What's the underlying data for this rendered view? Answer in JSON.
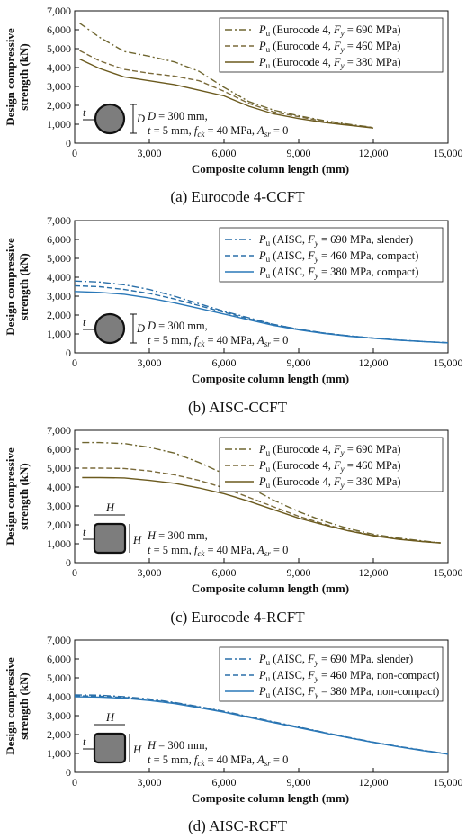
{
  "chart_data": [
    {
      "id": "a",
      "type": "line",
      "caption": "(a) Eurocode 4-CCFT",
      "xlabel": "Composite column length (mm)",
      "ylabel": [
        "Design compressive",
        "strength (kN)"
      ],
      "xlim": [
        0,
        15000
      ],
      "ylim": [
        0,
        7000
      ],
      "xticks": [
        0,
        3000,
        6000,
        9000,
        12000,
        15000
      ],
      "xtick_labels": [
        "0",
        "3,000",
        "6,000",
        "9,000",
        "12,000",
        "15,000"
      ],
      "yticks": [
        0,
        1000,
        2000,
        3000,
        4000,
        5000,
        6000,
        7000
      ],
      "ytick_labels": [
        "0",
        "1,000",
        "2,000",
        "3,000",
        "4,000",
        "5,000",
        "6,000",
        "7,000"
      ],
      "grid": false,
      "legend_position": "top-right",
      "section_shape": "circle",
      "annotation": {
        "dim_symbol": "D",
        "thickness_symbol": "t",
        "line1": "D = 300 mm,",
        "line2": "t = 5 mm, f",
        "line2_sub": "ck",
        "line2_rest": " = 40 MPa, A",
        "line2_sub2": "sr",
        "line2_end": " = 0"
      },
      "series": [
        {
          "name": "Pu (Eurocode 4, Fy = 690 MPa)",
          "label_main": "P",
          "label_sub": "u",
          "label_pre": " (Eurocode 4, ",
          "label_fy": "F",
          "label_fy_sub": "y",
          "label_post": " = 690 MPa)",
          "color": "#6f6630",
          "style": "dashdot",
          "x": [
            200,
            1000,
            2000,
            3000,
            4000,
            5000,
            6000,
            7000,
            8000,
            9000,
            10000,
            11000,
            12000
          ],
          "y": [
            6350,
            5600,
            4850,
            4600,
            4300,
            3800,
            2950,
            2200,
            1750,
            1450,
            1200,
            1000,
            830
          ]
        },
        {
          "name": "Pu (Eurocode 4, Fy = 460 MPa)",
          "label_main": "P",
          "label_sub": "u",
          "label_pre": " (Eurocode 4, ",
          "label_fy": "F",
          "label_fy_sub": "y",
          "label_post": " = 460 MPa)",
          "color": "#7a6a3a",
          "style": "dashed",
          "x": [
            200,
            1000,
            2000,
            3000,
            4000,
            5000,
            6000,
            7000,
            8000,
            9000,
            10000,
            11000,
            12000
          ],
          "y": [
            4900,
            4350,
            3900,
            3700,
            3550,
            3300,
            2750,
            2100,
            1650,
            1400,
            1150,
            960,
            820
          ]
        },
        {
          "name": "Pu (Eurocode 4, Fy = 380 MPa)",
          "label_main": "P",
          "label_sub": "u",
          "label_pre": " (Eurocode 4, ",
          "label_fy": "F",
          "label_fy_sub": "y",
          "label_post": " = 380 MPa)",
          "color": "#6b5a1e",
          "style": "solid",
          "x": [
            200,
            1000,
            2000,
            3000,
            4000,
            5000,
            6000,
            7000,
            8000,
            9000,
            10000,
            11000,
            12000
          ],
          "y": [
            4450,
            3950,
            3500,
            3300,
            3100,
            2800,
            2500,
            1950,
            1550,
            1300,
            1100,
            950,
            800
          ]
        }
      ]
    },
    {
      "id": "b",
      "type": "line",
      "caption": "(b) AISC-CCFT",
      "xlabel": "Composite column length (mm)",
      "ylabel": [
        "Design compressive",
        "strength (kN)"
      ],
      "xlim": [
        0,
        15000
      ],
      "ylim": [
        0,
        7000
      ],
      "xticks": [
        0,
        3000,
        6000,
        9000,
        12000,
        15000
      ],
      "xtick_labels": [
        "0",
        "3,000",
        "6,000",
        "9,000",
        "12,000",
        "15,000"
      ],
      "yticks": [
        0,
        1000,
        2000,
        3000,
        4000,
        5000,
        6000,
        7000
      ],
      "ytick_labels": [
        "0",
        "1,000",
        "2,000",
        "3,000",
        "4,000",
        "5,000",
        "6,000",
        "7,000"
      ],
      "grid": false,
      "legend_position": "top-right",
      "section_shape": "circle",
      "annotation": {
        "dim_symbol": "D",
        "thickness_symbol": "t",
        "line1": "D = 300 mm,",
        "line2": "t = 5 mm, f",
        "line2_sub": "ck",
        "line2_rest": " = 40 MPa, A",
        "line2_sub2": "sr",
        "line2_end": " = 0"
      },
      "series": [
        {
          "name": "Pu (AISC, Fy = 690 MPa, slender)",
          "label_main": "P",
          "label_sub": "u",
          "label_pre": " (AISC, ",
          "label_fy": "F",
          "label_fy_sub": "y",
          "label_post": " = 690 MPa, slender)",
          "color": "#2a6fa8",
          "style": "dashdot",
          "x": [
            0,
            1000,
            2000,
            3000,
            4000,
            5000,
            6000,
            7000,
            8000,
            9000,
            10000,
            11000,
            12000,
            13000,
            14000,
            15000
          ],
          "y": [
            3800,
            3750,
            3600,
            3350,
            3000,
            2600,
            2200,
            1850,
            1500,
            1250,
            1050,
            900,
            780,
            680,
            600,
            540
          ]
        },
        {
          "name": "Pu (AISC, Fy = 460 MPa, compact)",
          "label_main": "P",
          "label_sub": "u",
          "label_pre": " (AISC, ",
          "label_fy": "F",
          "label_fy_sub": "y",
          "label_post": " = 460 MPa, compact)",
          "color": "#2a6fa8",
          "style": "dashed",
          "x": [
            0,
            1000,
            2000,
            3000,
            4000,
            5000,
            6000,
            7000,
            8000,
            9000,
            10000,
            11000,
            12000,
            13000,
            14000,
            15000
          ],
          "y": [
            3550,
            3500,
            3350,
            3150,
            2850,
            2500,
            2150,
            1800,
            1500,
            1250,
            1050,
            900,
            780,
            680,
            600,
            540
          ]
        },
        {
          "name": "Pu (AISC, Fy = 380 MPa, compact)",
          "label_main": "P",
          "label_sub": "u",
          "label_pre": " (AISC, ",
          "label_fy": "F",
          "label_fy_sub": "y",
          "label_post": " = 380 MPa, compact)",
          "color": "#2a78b8",
          "style": "solid",
          "x": [
            0,
            1000,
            2000,
            3000,
            4000,
            5000,
            6000,
            7000,
            8000,
            9000,
            10000,
            11000,
            12000,
            13000,
            14000,
            15000
          ],
          "y": [
            3250,
            3200,
            3100,
            2900,
            2650,
            2350,
            2050,
            1750,
            1450,
            1220,
            1030,
            880,
            770,
            670,
            600,
            530
          ]
        }
      ]
    },
    {
      "id": "c",
      "type": "line",
      "caption": "(c) Eurocode 4-RCFT",
      "xlabel": "Composite column length (mm)",
      "ylabel": [
        "Design compressive",
        "strength (kN)"
      ],
      "xlim": [
        0,
        15000
      ],
      "ylim": [
        0,
        7000
      ],
      "xticks": [
        0,
        3000,
        6000,
        9000,
        12000,
        15000
      ],
      "xtick_labels": [
        "0",
        "3,000",
        "6,000",
        "9,000",
        "12,000",
        "15,000"
      ],
      "yticks": [
        0,
        1000,
        2000,
        3000,
        4000,
        5000,
        6000,
        7000
      ],
      "ytick_labels": [
        "0",
        "1,000",
        "2,000",
        "3,000",
        "4,000",
        "5,000",
        "6,000",
        "7,000"
      ],
      "grid": false,
      "legend_position": "top-right",
      "section_shape": "square",
      "annotation": {
        "dim_symbol": "H",
        "thickness_symbol": "t",
        "line1": "H = 300 mm,",
        "line2": "t = 5 mm, f",
        "line2_sub": "ck",
        "line2_rest": " = 40 MPa, A",
        "line2_sub2": "sr",
        "line2_end": " = 0"
      },
      "series": [
        {
          "name": "Pu (Eurocode 4, Fy = 690 MPa)",
          "label_main": "P",
          "label_sub": "u",
          "label_pre": " (Eurocode 4, ",
          "label_fy": "F",
          "label_fy_sub": "y",
          "label_post": " = 690 MPa)",
          "color": "#6f6630",
          "style": "dashdot",
          "x": [
            300,
            1000,
            2000,
            3000,
            4000,
            5000,
            6000,
            7000,
            8000,
            9000,
            10000,
            11000,
            12000,
            13000,
            14000,
            14700
          ],
          "y": [
            6350,
            6350,
            6300,
            6100,
            5800,
            5300,
            4700,
            4000,
            3300,
            2700,
            2200,
            1800,
            1500,
            1300,
            1150,
            1050
          ]
        },
        {
          "name": "Pu (Eurocode 4, Fy = 460 MPa)",
          "label_main": "P",
          "label_sub": "u",
          "label_pre": " (Eurocode 4, ",
          "label_fy": "F",
          "label_fy_sub": "y",
          "label_post": " = 460 MPa)",
          "color": "#7a6a3a",
          "style": "dashed",
          "x": [
            300,
            1000,
            2000,
            3000,
            4000,
            5000,
            6000,
            7000,
            8000,
            9000,
            10000,
            11000,
            12000,
            13000,
            14000,
            14700
          ],
          "y": [
            5000,
            5000,
            4980,
            4850,
            4650,
            4350,
            3950,
            3450,
            2950,
            2450,
            2050,
            1700,
            1450,
            1250,
            1120,
            1050
          ]
        },
        {
          "name": "Pu (Eurocode 4, Fy = 380 MPa)",
          "label_main": "P",
          "label_sub": "u",
          "label_pre": " (Eurocode 4, ",
          "label_fy": "F",
          "label_fy_sub": "y",
          "label_post": " = 380 MPa)",
          "color": "#6b5a1e",
          "style": "solid",
          "x": [
            300,
            1000,
            2000,
            3000,
            4000,
            5000,
            6000,
            7000,
            8000,
            9000,
            10000,
            11000,
            12000,
            13000,
            14000,
            14700
          ],
          "y": [
            4500,
            4500,
            4480,
            4350,
            4200,
            3950,
            3650,
            3250,
            2800,
            2350,
            2000,
            1680,
            1420,
            1240,
            1110,
            1040
          ]
        }
      ]
    },
    {
      "id": "d",
      "type": "line",
      "caption": "(d) AISC-RCFT",
      "xlabel": "Composite column length (mm)",
      "ylabel": [
        "Design compressive",
        "strength (kN)"
      ],
      "xlim": [
        0,
        15000
      ],
      "ylim": [
        0,
        7000
      ],
      "xticks": [
        0,
        3000,
        6000,
        9000,
        12000,
        15000
      ],
      "xtick_labels": [
        "0",
        "3,000",
        "6,000",
        "9,000",
        "12,000",
        "15,000"
      ],
      "yticks": [
        0,
        1000,
        2000,
        3000,
        4000,
        5000,
        6000,
        7000
      ],
      "ytick_labels": [
        "0",
        "1,000",
        "2,000",
        "3,000",
        "4,000",
        "5,000",
        "6,000",
        "7,000"
      ],
      "grid": false,
      "legend_position": "top-right",
      "section_shape": "square",
      "annotation": {
        "dim_symbol": "H",
        "thickness_symbol": "t",
        "line1": "H = 300 mm,",
        "line2": "t = 5 mm, f",
        "line2_sub": "ck",
        "line2_rest": " = 40 MPa, A",
        "line2_sub2": "sr",
        "line2_end": " = 0"
      },
      "series": [
        {
          "name": "Pu (AISC, Fy = 690 MPa, slender)",
          "label_main": "P",
          "label_sub": "u",
          "label_pre": " (AISC, ",
          "label_fy": "F",
          "label_fy_sub": "y",
          "label_post": " = 690 MPa, slender)",
          "color": "#2a6fa8",
          "style": "dashdot",
          "x": [
            0,
            1000,
            2000,
            3000,
            4000,
            5000,
            6000,
            7000,
            8000,
            9000,
            10000,
            11000,
            12000,
            13000,
            14000,
            15000
          ],
          "y": [
            4100,
            4080,
            4000,
            3880,
            3700,
            3480,
            3230,
            2950,
            2670,
            2400,
            2120,
            1850,
            1600,
            1370,
            1170,
            970
          ]
        },
        {
          "name": "Pu (AISC, Fy = 460 MPa, non-compact)",
          "label_main": "P",
          "label_sub": "u",
          "label_pre": " (AISC, ",
          "label_fy": "F",
          "label_fy_sub": "y",
          "label_post": " = 460 MPa, non-compact)",
          "color": "#2a6fa8",
          "style": "dashed",
          "x": [
            0,
            1000,
            2000,
            3000,
            4000,
            5000,
            6000,
            7000,
            8000,
            9000,
            10000,
            11000,
            12000,
            13000,
            14000,
            15000
          ],
          "y": [
            4050,
            4030,
            3960,
            3840,
            3670,
            3450,
            3200,
            2930,
            2650,
            2380,
            2110,
            1840,
            1590,
            1360,
            1160,
            970
          ]
        },
        {
          "name": "Pu (AISC, Fy = 380 MPa, non-compact)",
          "label_main": "P",
          "label_sub": "u",
          "label_pre": " (AISC, ",
          "label_fy": "F",
          "label_fy_sub": "y",
          "label_post": " = 380 MPa, non-compact)",
          "color": "#2a78b8",
          "style": "solid",
          "x": [
            0,
            1000,
            2000,
            3000,
            4000,
            5000,
            6000,
            7000,
            8000,
            9000,
            10000,
            11000,
            12000,
            13000,
            14000,
            15000
          ],
          "y": [
            4000,
            3980,
            3920,
            3800,
            3640,
            3420,
            3180,
            2910,
            2630,
            2360,
            2090,
            1830,
            1580,
            1350,
            1150,
            960
          ]
        }
      ]
    }
  ]
}
